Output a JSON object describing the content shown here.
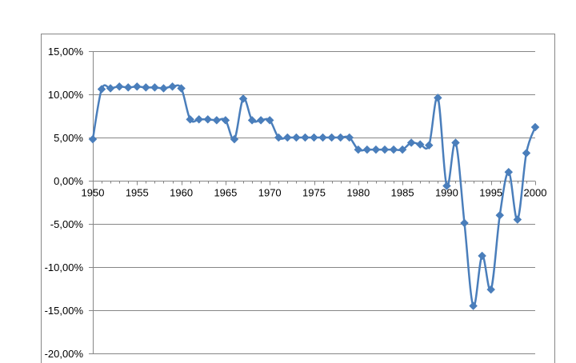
{
  "chart_data": {
    "type": "line",
    "title": "",
    "xlabel": "",
    "ylabel": "",
    "xlim": [
      1950,
      2000
    ],
    "ylim": [
      -20,
      15
    ],
    "x_ticks": [
      1950,
      1955,
      1960,
      1965,
      1970,
      1975,
      1980,
      1985,
      1990,
      1995,
      2000
    ],
    "x_tick_labels": [
      "1950",
      "1955",
      "1960",
      "1965",
      "1970",
      "1975",
      "1980",
      "1985",
      "1990",
      "1995",
      "2000"
    ],
    "y_ticks": [
      15,
      10,
      5,
      0,
      -5,
      -10,
      -15,
      -20
    ],
    "y_tick_labels": [
      "15,00%",
      "10,00%",
      "5,00%",
      "0,00%",
      "-5,00%",
      "-10,00%",
      "-15,00%",
      "-20,00%"
    ],
    "grid": true,
    "legend": "none",
    "line_color": "#4a7ebb",
    "series": [
      {
        "x": [
          1950,
          1951,
          1952,
          1953,
          1954,
          1955,
          1956,
          1957,
          1958,
          1959,
          1960,
          1961,
          1962,
          1963,
          1964,
          1965,
          1966,
          1967,
          1968,
          1969,
          1970,
          1971,
          1972,
          1973,
          1974,
          1975,
          1976,
          1977,
          1978,
          1979,
          1980,
          1981,
          1982,
          1983,
          1984,
          1985,
          1986,
          1987,
          1988,
          1989,
          1990,
          1991,
          1992,
          1993,
          1994,
          1995,
          1996,
          1997,
          1998,
          1999,
          2000
        ],
        "values": [
          4.8,
          10.6,
          10.7,
          10.9,
          10.8,
          10.9,
          10.8,
          10.8,
          10.7,
          10.9,
          10.7,
          7.1,
          7.1,
          7.1,
          7.0,
          7.0,
          4.8,
          9.5,
          7.0,
          7.0,
          7.0,
          5.0,
          5.0,
          5.0,
          5.0,
          5.0,
          5.0,
          5.0,
          5.0,
          5.0,
          3.6,
          3.6,
          3.6,
          3.6,
          3.6,
          3.6,
          4.4,
          4.2,
          4.1,
          9.6,
          -0.6,
          4.4,
          -4.9,
          -14.5,
          -8.7,
          -12.6,
          -4.0,
          1.0,
          -4.5,
          3.2,
          6.2
        ]
      }
    ]
  }
}
